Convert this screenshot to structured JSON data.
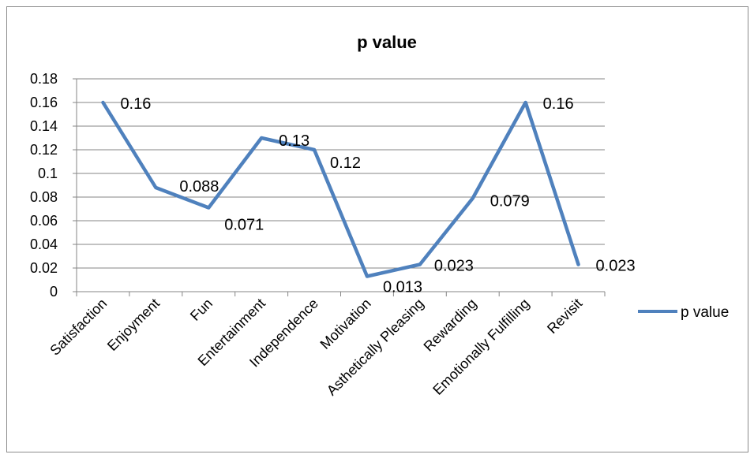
{
  "chart_data": {
    "type": "line",
    "title": "p value",
    "xlabel": "",
    "ylabel": "",
    "ylim": [
      0,
      0.18
    ],
    "yticks": [
      "0",
      "0.02",
      "0.04",
      "0.06",
      "0.08",
      "0.1",
      "0.12",
      "0.14",
      "0.16",
      "0.18"
    ],
    "grid": true,
    "legend": "right",
    "categories": [
      "Satisfaction",
      "Enjoyment",
      "Fun",
      "Entertainment",
      "Independence",
      "Motivation",
      "Asthetically Pleasing",
      "Rewarding",
      "Emotionally Fulfilling",
      "Revisit"
    ],
    "series": [
      {
        "name": "p value",
        "color": "#4f81bd",
        "values": [
          0.16,
          0.088,
          0.071,
          0.13,
          0.12,
          0.013,
          0.023,
          0.079,
          0.16,
          0.023
        ],
        "labels": [
          "0.16",
          "0.088",
          "0.071",
          "0.13",
          "0.12",
          "0.013",
          "0.023",
          "0.079",
          "0.16",
          "0.023"
        ]
      }
    ]
  }
}
